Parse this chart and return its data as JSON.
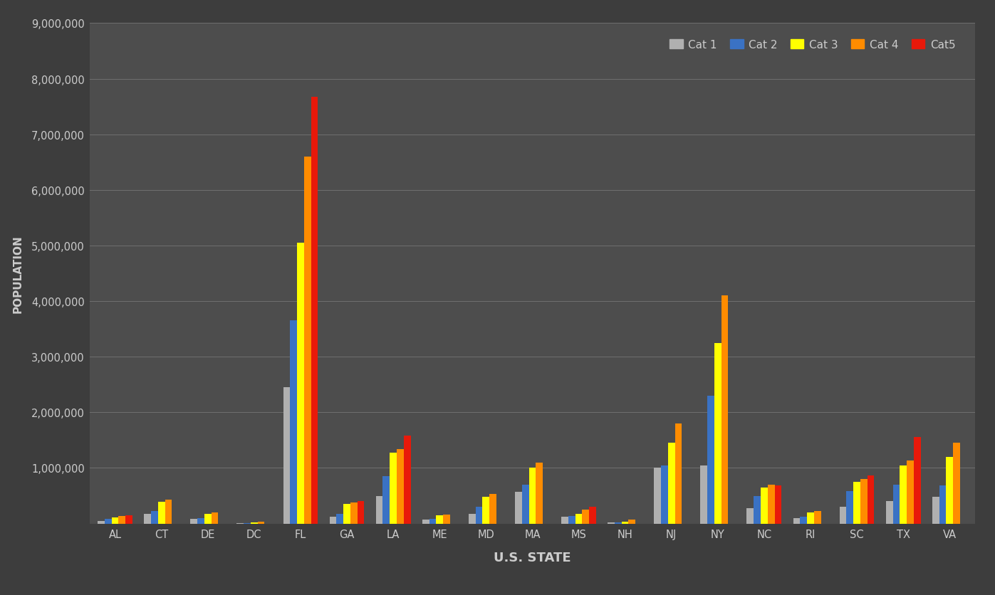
{
  "states": [
    "AL",
    "CT",
    "DE",
    "DC",
    "FL",
    "GA",
    "LA",
    "ME",
    "MD",
    "MA",
    "MS",
    "NH",
    "NJ",
    "NY",
    "NC",
    "RI",
    "SC",
    "TX",
    "VA"
  ],
  "categories": [
    "Cat 1",
    "Cat 2",
    "Cat 3",
    "Cat 4",
    "Cat5"
  ],
  "colors": [
    "#b0b0b0",
    "#3a72c4",
    "#ffff00",
    "#ff8c00",
    "#e8190a"
  ],
  "data": {
    "Cat 1": [
      50000,
      175000,
      90000,
      5000,
      2450000,
      120000,
      500000,
      75000,
      175000,
      575000,
      125000,
      15000,
      1000000,
      1050000,
      280000,
      100000,
      300000,
      400000,
      480000
    ],
    "Cat 2": [
      80000,
      220000,
      100000,
      10000,
      3650000,
      175000,
      850000,
      90000,
      300000,
      700000,
      140000,
      20000,
      1050000,
      2300000,
      500000,
      120000,
      580000,
      700000,
      680000
    ],
    "Cat 3": [
      115000,
      390000,
      175000,
      20000,
      5050000,
      350000,
      1280000,
      145000,
      480000,
      1000000,
      170000,
      35000,
      1450000,
      3250000,
      650000,
      200000,
      750000,
      1050000,
      1200000
    ],
    "Cat 4": [
      130000,
      430000,
      200000,
      35000,
      6600000,
      380000,
      1340000,
      165000,
      530000,
      1100000,
      250000,
      65000,
      1800000,
      4100000,
      700000,
      230000,
      800000,
      1130000,
      1450000
    ],
    "Cat5": [
      145000,
      0,
      0,
      0,
      7680000,
      400000,
      1580000,
      0,
      0,
      0,
      300000,
      0,
      0,
      0,
      680000,
      0,
      860000,
      1560000,
      0
    ]
  },
  "ylabel": "POPULATION",
  "xlabel": "U.S. STATE",
  "ylim": [
    0,
    9000000
  ],
  "yticks": [
    0,
    1000000,
    2000000,
    3000000,
    4000000,
    5000000,
    6000000,
    7000000,
    8000000,
    9000000
  ],
  "ytick_labels": [
    "",
    "1,000,000",
    "2,000,000",
    "3,000,000",
    "4,000,000",
    "5,000,000",
    "6,000,000",
    "7,000,000",
    "8,000,000",
    "9,000,000"
  ],
  "bg_color": "#3d3d3d",
  "plot_bg_color": "#4d4d4d",
  "text_color": "#cccccc",
  "grid_color": "#707070",
  "bar_width": 0.15
}
